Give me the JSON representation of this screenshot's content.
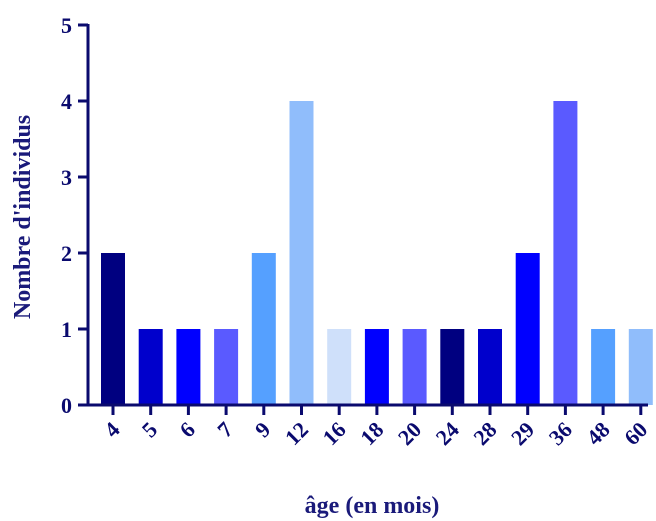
{
  "chart_data": {
    "type": "bar",
    "categories": [
      "4",
      "5",
      "6",
      "7",
      "9",
      "12",
      "16",
      "18",
      "20",
      "24",
      "28",
      "29",
      "36",
      "48",
      "60"
    ],
    "values": [
      2,
      1,
      1,
      1,
      2,
      4,
      1,
      1,
      1,
      1,
      1,
      2,
      4,
      1,
      1
    ],
    "bar_colors": [
      "#000080",
      "#0000cc",
      "#0000ff",
      "#5a5aff",
      "#55a0ff",
      "#90bdfb",
      "#cfe0fa",
      "#0000ff",
      "#5a5aff",
      "#000080",
      "#0000cc",
      "#0000ff",
      "#5a5aff",
      "#55a0ff",
      "#90bdfb"
    ],
    "title": "",
    "xlabel": "âge (en mois)",
    "ylabel": "Nombre d'individus",
    "ylim": [
      0,
      5
    ],
    "yticks": [
      "0",
      "1",
      "2",
      "3",
      "4",
      "5"
    ],
    "grid": false,
    "legend": "none",
    "axis_color": "#0a0a6e"
  }
}
